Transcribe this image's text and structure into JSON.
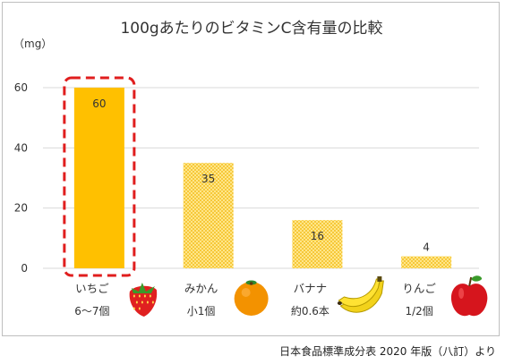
{
  "source_note": "日本食品標準成分表 2020 年版（八訂）より",
  "chart_data": {
    "type": "bar",
    "title": "100gあたりのビタミンC含有量の比較",
    "ylabel": "（mg）",
    "ylim": [
      0,
      60
    ],
    "yticks": [
      0,
      20,
      40,
      60
    ],
    "grid": true,
    "categories": [
      "いちご",
      "みかん",
      "バナナ",
      "りんご"
    ],
    "sublabels": [
      "6～7個",
      "小1個",
      "約0.6本",
      "1/2個"
    ],
    "values": [
      60,
      35,
      16,
      4
    ],
    "fruit_icons": [
      "strawberry-icon",
      "orange-icon",
      "banana-icon",
      "apple-icon"
    ],
    "highlight_index": 0,
    "colors": {
      "bar_highlight": "#ffc000",
      "bar_pattern_dot": "#f0b400",
      "bar_pattern_bg": "#ffe68a",
      "highlight_border": "#e01e1e",
      "gridline": "#d9d9d9"
    }
  }
}
